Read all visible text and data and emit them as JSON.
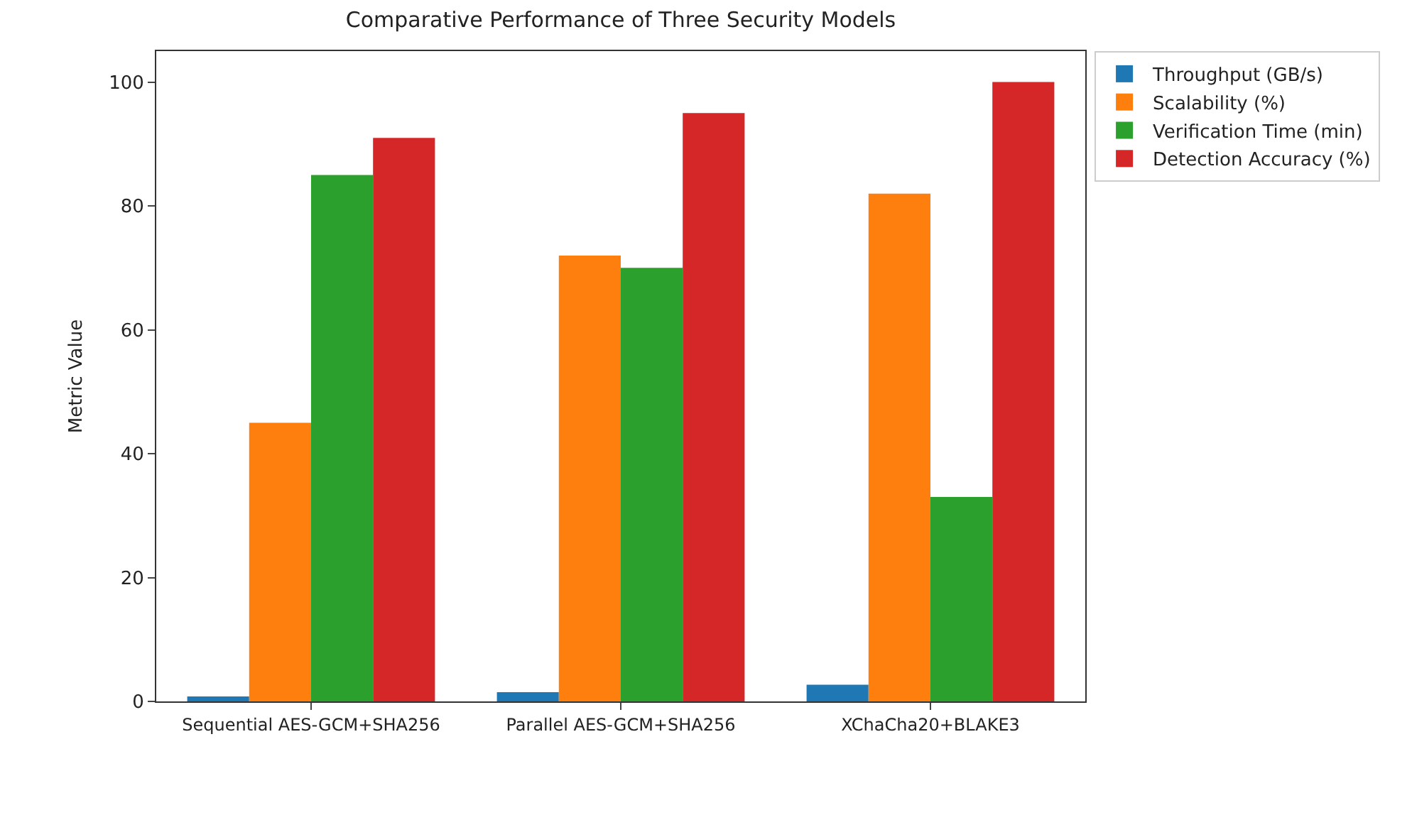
{
  "chart_data": {
    "type": "bar",
    "title": "Comparative Performance of Three Security Models",
    "ylabel": "Metric Value",
    "categories": [
      "Sequential AES-GCM+SHA256",
      "Parallel AES-GCM+SHA256",
      "XChaCha20+BLAKE3"
    ],
    "series": [
      {
        "name": "Throughput (GB/s)",
        "color": "#1f77b4",
        "values": [
          0.8,
          1.5,
          2.7
        ]
      },
      {
        "name": "Scalability (%)",
        "color": "#ff7f0e",
        "values": [
          45,
          72,
          82
        ]
      },
      {
        "name": "Verification Time (min)",
        "color": "#2ca02c",
        "values": [
          85,
          70,
          33
        ]
      },
      {
        "name": "Detection Accuracy (%)",
        "color": "#d62728",
        "values": [
          91,
          95,
          100
        ]
      }
    ],
    "ylim": [
      0,
      105
    ],
    "yticks": [
      0,
      20,
      40,
      60,
      80,
      100
    ],
    "grid": false,
    "legend": "top right"
  }
}
